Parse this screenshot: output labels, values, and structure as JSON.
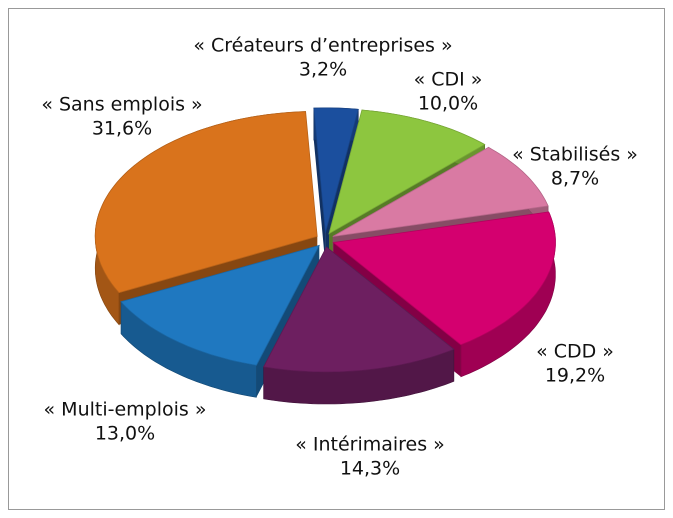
{
  "chart_data": {
    "type": "pie3d",
    "categories": [
      "« Créateurs d’entreprises »",
      "« CDI »",
      "« Stabilisés »",
      "« CDD »",
      "« Intérimaires »",
      "« Multi-emplois »",
      "« Sans emplois »"
    ],
    "values": [
      3.2,
      10.0,
      8.7,
      19.2,
      14.3,
      13.0,
      31.6
    ],
    "value_labels": [
      "3,2%",
      "10,0%",
      "8,7%",
      "19,2%",
      "14,3%",
      "13,0%",
      "31,6%"
    ],
    "colors": [
      "#1b4f9e",
      "#8dc63f",
      "#d97aa3",
      "#d4006f",
      "#6d1f60",
      "#1f78c0",
      "#d9731c"
    ]
  }
}
